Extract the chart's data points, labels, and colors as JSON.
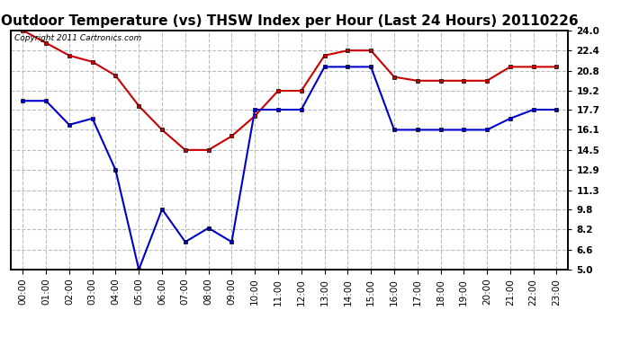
{
  "title": "Outdoor Temperature (vs) THSW Index per Hour (Last 24 Hours) 20110226",
  "copyright_text": "Copyright 2011 Cartronics.com",
  "hours": [
    "00:00",
    "01:00",
    "02:00",
    "03:00",
    "04:00",
    "05:00",
    "06:00",
    "07:00",
    "08:00",
    "09:00",
    "10:00",
    "11:00",
    "12:00",
    "13:00",
    "14:00",
    "15:00",
    "16:00",
    "17:00",
    "18:00",
    "19:00",
    "20:00",
    "21:00",
    "22:00",
    "23:00"
  ],
  "red_data": [
    24.0,
    23.0,
    22.0,
    21.5,
    20.4,
    18.0,
    16.1,
    14.5,
    14.5,
    15.6,
    17.2,
    19.2,
    19.2,
    22.0,
    22.4,
    22.4,
    20.3,
    20.0,
    20.0,
    20.0,
    20.0,
    21.1,
    21.1,
    21.1
  ],
  "blue_data": [
    18.4,
    18.4,
    16.5,
    17.0,
    12.9,
    5.0,
    9.8,
    7.2,
    8.3,
    7.2,
    17.7,
    17.7,
    17.7,
    21.1,
    21.1,
    21.1,
    16.1,
    16.1,
    16.1,
    16.1,
    16.1,
    17.0,
    17.7,
    17.7
  ],
  "ylim_min": 5.0,
  "ylim_max": 24.0,
  "yticks": [
    5.0,
    6.6,
    8.2,
    9.8,
    11.3,
    12.9,
    14.5,
    16.1,
    17.7,
    19.2,
    20.8,
    22.4,
    24.0
  ],
  "red_color": "#cc0000",
  "blue_color": "#0000cc",
  "bg_color": "#ffffff",
  "grid_color": "#bbbbbb",
  "title_fontsize": 11,
  "tick_fontsize": 7.5,
  "copyright_fontsize": 6.5
}
